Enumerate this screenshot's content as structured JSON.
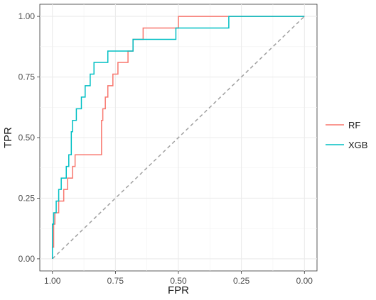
{
  "chart_data": {
    "type": "line",
    "title": "",
    "xlabel": "FPR",
    "ylabel": "TPR",
    "x_reversed": true,
    "xlim": [
      1.0,
      0.0
    ],
    "ylim": [
      0.0,
      1.0
    ],
    "x_ticks": [
      "1.00",
      "0.75",
      "0.50",
      "0.25",
      "0.00"
    ],
    "y_ticks": [
      "0.00",
      "0.25",
      "0.50",
      "0.75",
      "1.00"
    ],
    "grid": true,
    "legend_position": "right",
    "reference_line": {
      "x": [
        1.0,
        0.0
      ],
      "y": [
        0.0,
        1.0
      ],
      "color": "#a0a0a0",
      "style": "dashed"
    },
    "series": [
      {
        "name": "RF",
        "color": "#f8766d",
        "x": [
          1.0,
          1.0,
          0.995,
          0.995,
          0.99,
          0.99,
          0.975,
          0.975,
          0.955,
          0.955,
          0.94,
          0.94,
          0.92,
          0.92,
          0.91,
          0.91,
          0.89,
          0.89,
          0.805,
          0.805,
          0.8,
          0.8,
          0.79,
          0.79,
          0.78,
          0.78,
          0.76,
          0.76,
          0.74,
          0.74,
          0.72,
          0.72,
          0.7,
          0.7,
          0.68,
          0.68,
          0.665,
          0.665,
          0.64,
          0.64,
          0.5,
          0.5,
          0.3,
          0.0
        ],
        "y": [
          0.0,
          0.048,
          0.048,
          0.143,
          0.143,
          0.19,
          0.19,
          0.238,
          0.238,
          0.286,
          0.286,
          0.333,
          0.333,
          0.381,
          0.381,
          0.429,
          0.429,
          0.429,
          0.429,
          0.571,
          0.571,
          0.619,
          0.619,
          0.667,
          0.667,
          0.714,
          0.714,
          0.762,
          0.762,
          0.81,
          0.81,
          0.81,
          0.81,
          0.857,
          0.857,
          0.905,
          0.905,
          0.905,
          0.905,
          0.952,
          0.952,
          1.0,
          1.0,
          1.0
        ]
      },
      {
        "name": "XGB",
        "color": "#00bfc4",
        "x": [
          1.0,
          1.0,
          0.995,
          0.995,
          0.985,
          0.985,
          0.975,
          0.975,
          0.965,
          0.965,
          0.945,
          0.945,
          0.935,
          0.935,
          0.925,
          0.925,
          0.92,
          0.92,
          0.905,
          0.905,
          0.885,
          0.885,
          0.87,
          0.87,
          0.85,
          0.85,
          0.835,
          0.835,
          0.815,
          0.815,
          0.78,
          0.78,
          0.75,
          0.75,
          0.68,
          0.68,
          0.64,
          0.64,
          0.51,
          0.51,
          0.3,
          0.3,
          0.0
        ],
        "y": [
          0.0,
          0.143,
          0.143,
          0.19,
          0.19,
          0.238,
          0.238,
          0.286,
          0.286,
          0.333,
          0.333,
          0.381,
          0.381,
          0.429,
          0.429,
          0.524,
          0.524,
          0.571,
          0.571,
          0.619,
          0.619,
          0.667,
          0.667,
          0.714,
          0.714,
          0.762,
          0.762,
          0.81,
          0.81,
          0.81,
          0.81,
          0.857,
          0.857,
          0.857,
          0.857,
          0.905,
          0.905,
          0.905,
          0.905,
          0.952,
          0.952,
          1.0,
          1.0
        ]
      }
    ]
  }
}
